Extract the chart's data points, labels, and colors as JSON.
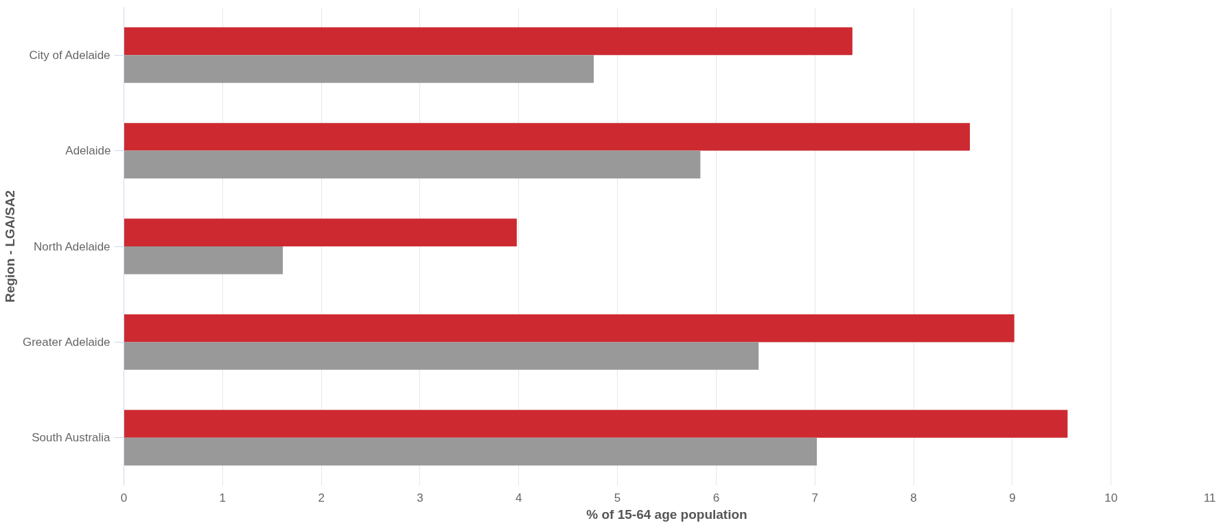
{
  "chart_data": {
    "type": "bar",
    "orientation": "horizontal",
    "xlabel": "% of 15-64 age population",
    "ylabel": "Region - LGA/SA2",
    "categories": [
      "City of Adelaide",
      "Adelaide",
      "North Adelaide",
      "Greater Adelaide",
      "South Australia"
    ],
    "series": [
      {
        "color": "#cc2a30",
        "values": [
          7.38,
          8.57,
          3.98,
          9.02,
          9.56
        ]
      },
      {
        "color": "#999999",
        "values": [
          4.76,
          5.84,
          1.61,
          6.43,
          7.02
        ]
      }
    ],
    "xlim": [
      0,
      11
    ],
    "xticks": [
      0,
      1,
      2,
      3,
      4,
      5,
      6,
      7,
      8,
      9,
      10,
      11
    ],
    "grid": "x"
  }
}
